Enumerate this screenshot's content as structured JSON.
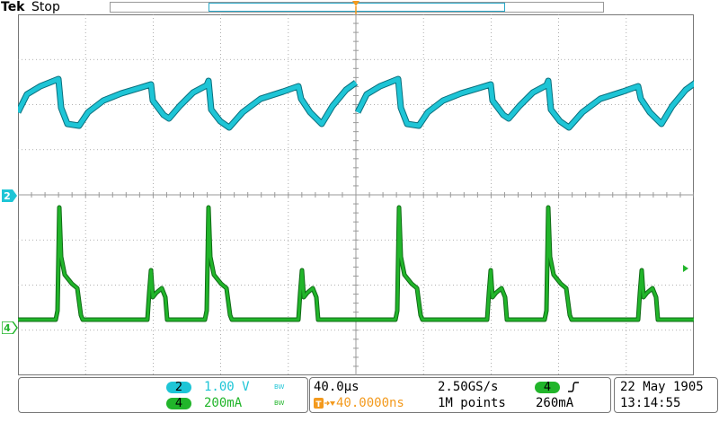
{
  "header": {
    "brand": "Tek",
    "state": "Stop",
    "trigger_icon": "trigger-T-icon"
  },
  "channels": {
    "ch2": {
      "marker": "2",
      "color": "#1ec5d6",
      "dark_color": "#0a6f7d"
    },
    "ch4": {
      "marker": "4",
      "color": "#21b52a",
      "dark_color": "#106b16"
    }
  },
  "status": {
    "ch2_number": "2",
    "ch2_scale": "1.00 V",
    "ch2_bw": "BW",
    "ch4_number": "4",
    "ch4_scale": "200mA",
    "ch4_bw": "BW",
    "timebase": "40.0µs",
    "trigger_pos_icon": "T-arrow-icon",
    "trigger_delay": "40.0000ns",
    "sample_rate": "2.50GS/s",
    "record_length": "1M points",
    "trigger_source": "4",
    "trigger_slope_icon": "rising-edge-icon",
    "trigger_level": "260mA",
    "date": "22 May 1905",
    "time": "13:14:55"
  },
  "colors": {
    "grid": "#999999",
    "accent_orange": "#f39a1e"
  }
}
